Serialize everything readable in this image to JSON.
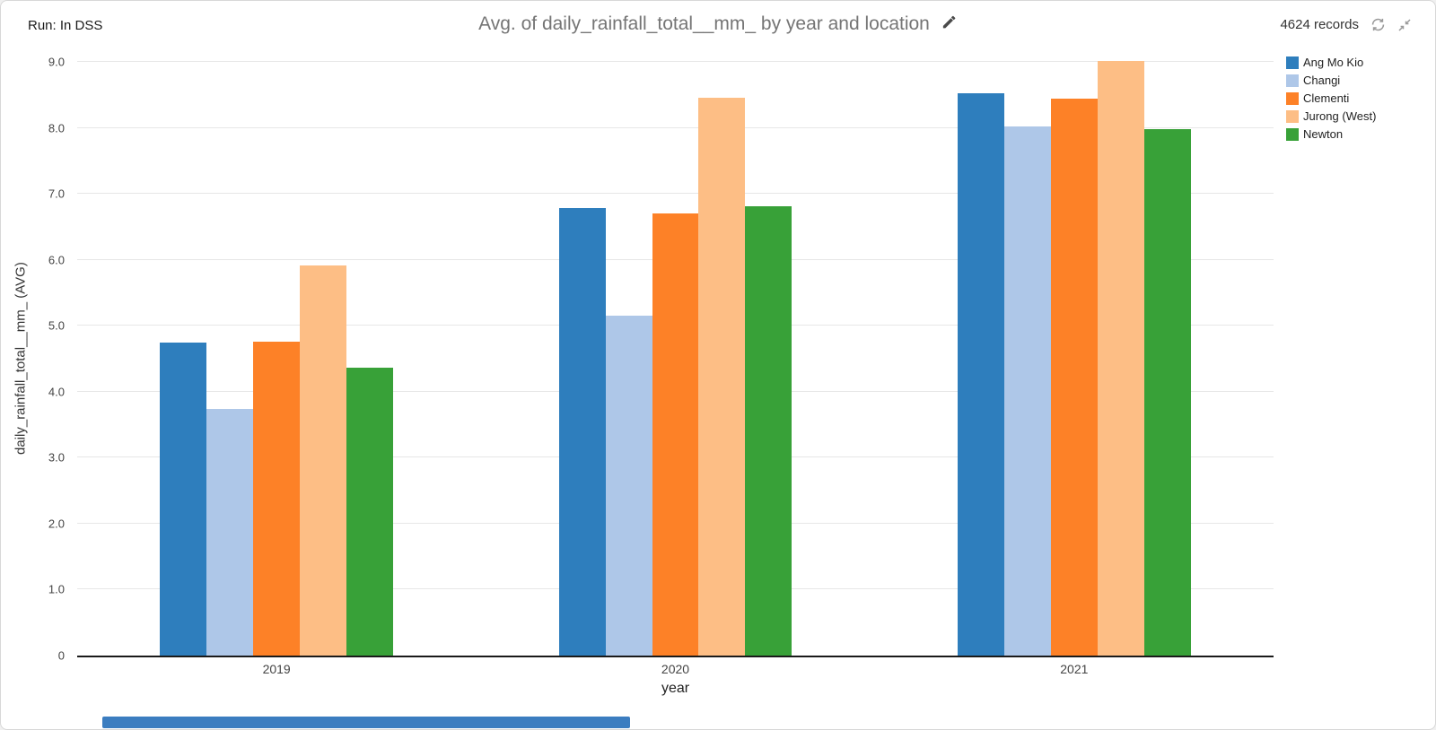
{
  "header": {
    "run_label": "Run: In DSS",
    "title": "Avg. of daily_rainfall_total__mm_ by year and location",
    "records": "4624 records",
    "icons": [
      "pencil-edit",
      "refresh",
      "compress-arrows"
    ]
  },
  "chart_data": {
    "type": "bar",
    "title": "Avg. of daily_rainfall_total__mm_ by year and location",
    "xlabel": "year",
    "ylabel": "daily_rainfall_total__mm_ (AVG)",
    "categories": [
      "2019",
      "2020",
      "2021"
    ],
    "series": [
      {
        "name": "Ang Mo Kio",
        "color": "#2e7ebd",
        "values": [
          4.74,
          6.78,
          8.52
        ]
      },
      {
        "name": "Changi",
        "color": "#aec7e8",
        "values": [
          3.74,
          5.15,
          8.02
        ]
      },
      {
        "name": "Clementi",
        "color": "#fd8127",
        "values": [
          4.76,
          6.7,
          8.44
        ]
      },
      {
        "name": "Jurong (West)",
        "color": "#fdbe85",
        "values": [
          5.92,
          8.46,
          9.02
        ]
      },
      {
        "name": "Newton",
        "color": "#38a138",
        "values": [
          4.36,
          6.81,
          7.98
        ]
      }
    ],
    "ylim": [
      0,
      9.0
    ],
    "yticks": [
      {
        "value": 0,
        "label": "0"
      },
      {
        "value": 1,
        "label": "1.0"
      },
      {
        "value": 2,
        "label": "2.0"
      },
      {
        "value": 3,
        "label": "3.0"
      },
      {
        "value": 4,
        "label": "4.0"
      },
      {
        "value": 5,
        "label": "5.0"
      },
      {
        "value": 6,
        "label": "6.0"
      },
      {
        "value": 7,
        "label": "7.0"
      },
      {
        "value": 8,
        "label": "8.0"
      },
      {
        "value": 9,
        "label": "9.0"
      }
    ],
    "grid": true,
    "legend_position": "top-right"
  }
}
